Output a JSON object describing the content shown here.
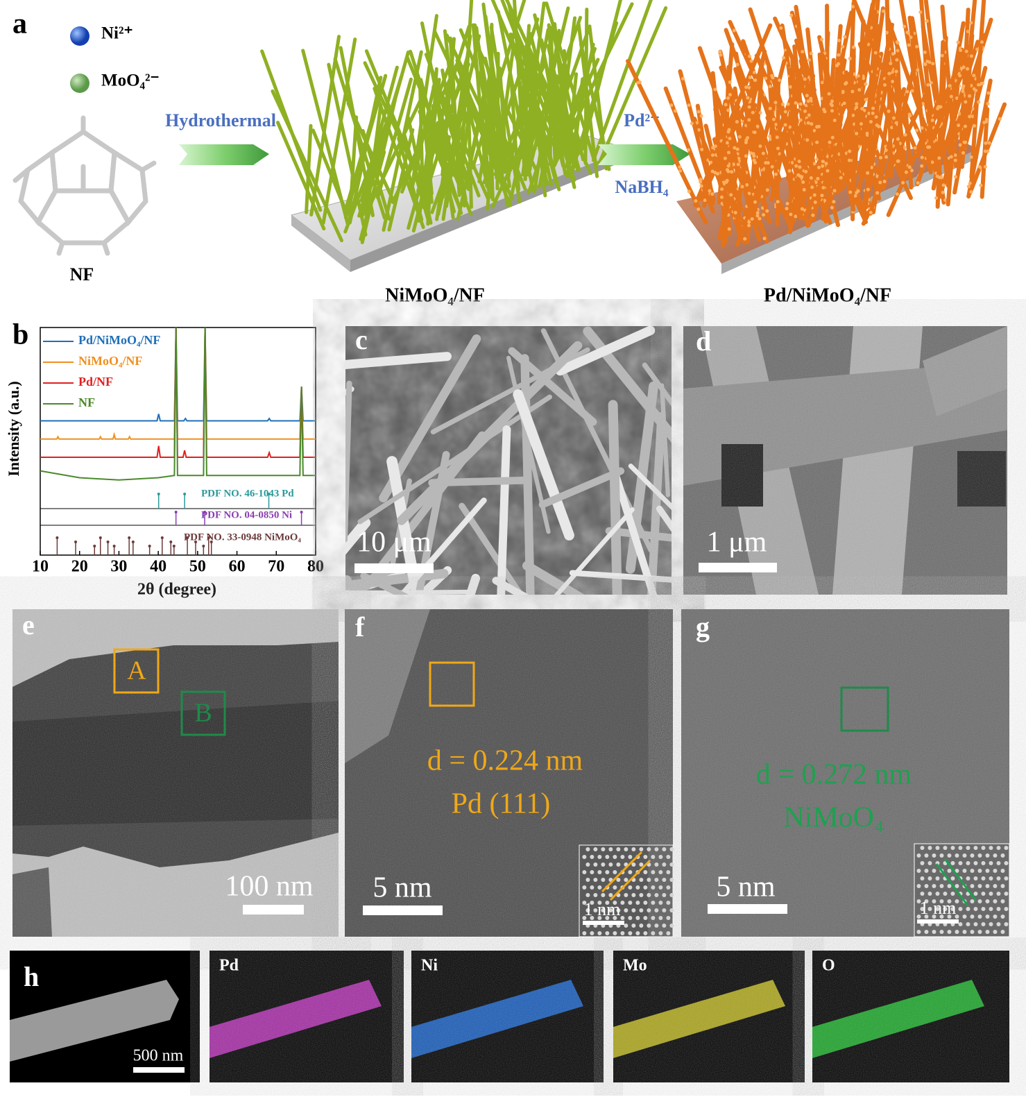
{
  "panel_a": {
    "label": "a",
    "ions": [
      "Ni²⁺",
      "MoO₄²⁻"
    ],
    "start": "NF",
    "step1": "Hydrothermal",
    "product1": "NiMoO₄/NF",
    "step2_top": "Pd²⁺",
    "step2_bottom": "NaBH₄",
    "product2": "Pd/NiMoO₄/NF"
  },
  "chart_data": {
    "type": "line",
    "label": "b",
    "xlabel": "2θ (degree)",
    "ylabel": "Intensity (a.u.)",
    "xlim": [
      10,
      80
    ],
    "xticks": [
      10,
      20,
      30,
      40,
      50,
      60,
      70,
      80
    ],
    "ylim": [
      0,
      100
    ],
    "series": [
      {
        "name": "Pd/NiMoO₄/NF",
        "color": "#1f6fb8",
        "x": [
          10,
          39.7,
          40.1,
          40.5,
          44.1,
          44.5,
          44.9,
          46.5,
          46.9,
          47.3,
          51.5,
          51.9,
          52.3,
          67.8,
          68.2,
          68.6,
          76,
          76.4,
          76.8,
          80
        ],
        "values": [
          59,
          59,
          62,
          59,
          59,
          100,
          59,
          59,
          60,
          59,
          59,
          100,
          59,
          59,
          60,
          59,
          59,
          74,
          59,
          59
        ]
      },
      {
        "name": "NiMoO₄/NF",
        "color": "#f0901e",
        "x": [
          10,
          14.2,
          14.5,
          14.8,
          25,
          25.3,
          25.6,
          28.5,
          28.8,
          29.1,
          32.4,
          32.7,
          33,
          44.1,
          44.5,
          44.9,
          51.5,
          51.9,
          52.3,
          76,
          76.4,
          76.8,
          80
        ],
        "values": [
          51,
          51,
          52,
          51,
          51,
          52,
          51,
          51,
          53,
          51,
          51,
          52,
          51,
          51,
          100,
          51,
          51,
          100,
          51,
          51,
          74,
          51,
          51
        ]
      },
      {
        "name": "Pd/NF",
        "color": "#e02020",
        "x": [
          10,
          39.7,
          40.1,
          40.5,
          44.1,
          44.5,
          44.9,
          46.3,
          46.7,
          47.1,
          51.5,
          51.9,
          52.3,
          67.8,
          68.2,
          68.6,
          76,
          76.4,
          76.8,
          80
        ],
        "values": [
          43,
          43,
          48,
          43,
          43,
          100,
          43,
          43,
          46,
          43,
          43,
          100,
          43,
          43,
          45,
          43,
          43,
          74,
          43,
          43
        ]
      },
      {
        "name": "NF",
        "color": "#4a8a2a",
        "x": [
          10,
          20,
          30,
          40,
          44.1,
          44.5,
          44.9,
          50,
          51.5,
          51.9,
          52.3,
          60,
          70,
          76,
          76.4,
          76.8,
          80
        ],
        "values": [
          37,
          34,
          33,
          34,
          35,
          100,
          35,
          35,
          35,
          100,
          35,
          35,
          35,
          35,
          74,
          35,
          35
        ]
      }
    ],
    "references": [
      {
        "name": "PDF NO. 46-1043 Pd",
        "color": "#2a9a9a",
        "peaks": [
          40.1,
          46.7,
          68.1
        ]
      },
      {
        "name": "PDF NO. 04-0850 Ni",
        "color": "#8a3fb0",
        "peaks": [
          44.5,
          51.8,
          76.4
        ]
      },
      {
        "name": "PDF NO. 33-0948 NiMoO₄",
        "color": "#6b3a3a",
        "peaks": [
          14.3,
          19,
          23.8,
          25.3,
          27.2,
          28.8,
          32.6,
          33.6,
          37.8,
          41,
          43.2,
          44,
          47.4,
          49.5,
          51.5,
          52.8,
          53.5
        ]
      }
    ]
  },
  "panel_c": {
    "label": "c",
    "scale_bar": "10 μm"
  },
  "panel_d": {
    "label": "d",
    "scale_bar": "1 μm"
  },
  "panel_e": {
    "label": "e",
    "scale_bar": "100 nm",
    "boxes": [
      "A",
      "B"
    ]
  },
  "panel_f": {
    "label": "f",
    "scale_bar": "5 nm",
    "inset_scale_bar": "1 nm",
    "spacing": "d = 0.224 nm",
    "plane": "Pd (111)"
  },
  "panel_g": {
    "label": "g",
    "scale_bar": "5 nm",
    "inset_scale_bar": "1 nm",
    "spacing": "d = 0.272 nm",
    "plane": "NiMoO₄"
  },
  "panel_h": {
    "label": "h",
    "scale_bar": "500 nm",
    "maps": [
      "Pd",
      "Ni",
      "Mo",
      "O"
    ]
  }
}
